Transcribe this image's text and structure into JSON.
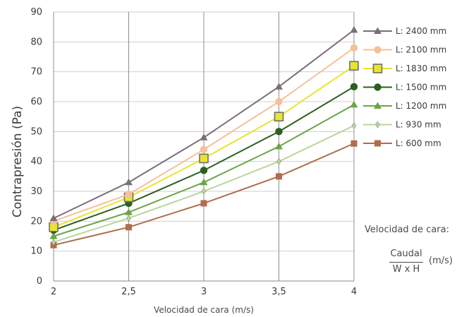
{
  "chart_data": {
    "type": "line",
    "title": "",
    "xlabel": "Velocidad de cara (m/s)",
    "ylabel": "Contrapresión (Pa)",
    "x": [
      2,
      2.5,
      3,
      3.5,
      4
    ],
    "x_tick_labels": [
      "2",
      "2,5",
      "3",
      "3,5",
      "4"
    ],
    "xlim": [
      2,
      4
    ],
    "ylim": [
      0,
      90
    ],
    "y_ticks": [
      0,
      10,
      20,
      30,
      40,
      50,
      60,
      70,
      80,
      90
    ],
    "grid": true,
    "legend_position": "right",
    "series": [
      {
        "name": "L: 2400 mm",
        "color": "#7a6e79",
        "marker": "triangle",
        "values": [
          21,
          33,
          48,
          65,
          84
        ]
      },
      {
        "name": "L: 2100 mm",
        "color": "#f5c09a",
        "marker": "circle",
        "values": [
          20,
          29,
          44,
          60,
          78
        ]
      },
      {
        "name": "L: 1830 mm",
        "color": "#e6e632",
        "marker": "square-outlined",
        "values": [
          18,
          28,
          41,
          55,
          72
        ]
      },
      {
        "name": "L: 1500 mm",
        "color": "#2d5f1f",
        "marker": "circle",
        "values": [
          17,
          26,
          37,
          50,
          65
        ]
      },
      {
        "name": "L: 1200 mm",
        "color": "#6aa544",
        "marker": "triangle",
        "values": [
          15,
          23,
          33,
          45,
          59
        ]
      },
      {
        "name": "L: 930 mm",
        "color": "#b8d69a",
        "marker": "diamond",
        "values": [
          13,
          21,
          30,
          40,
          52
        ]
      },
      {
        "name": "L: 600 mm",
        "color": "#b06c4c",
        "marker": "square",
        "values": [
          12,
          18,
          26,
          35,
          46
        ]
      }
    ]
  },
  "note": {
    "title": "Velocidad de cara:",
    "numerator": "Caudal",
    "denominator": "W x H",
    "unit": "(m/s)"
  }
}
